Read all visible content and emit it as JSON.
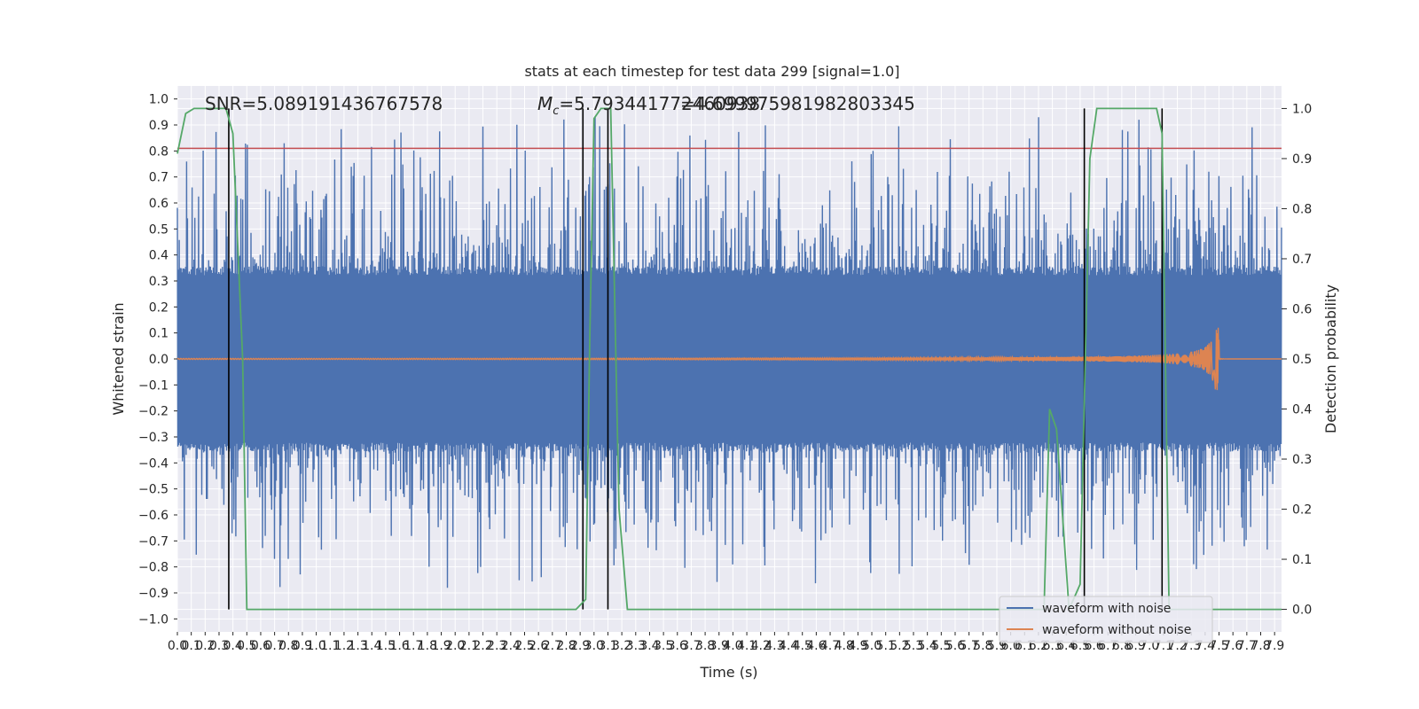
{
  "chart_data": {
    "type": "line",
    "title": "stats at each timestep for test data 299 [signal=1.0]",
    "xlabel": "Time (s)",
    "ylabel": "Whitened strain",
    "y2label": "Detection probability",
    "xlim": [
      0.0,
      7.95
    ],
    "ylim": [
      -1.05,
      1.05
    ],
    "y2lim": [
      -0.045,
      1.045
    ],
    "grid": true,
    "legend_position": "lower-right",
    "x_ticks": [
      "0.0",
      "0.1",
      "0.2",
      "0.3",
      "0.4",
      "0.5",
      "0.6",
      "0.7",
      "0.8",
      "0.9",
      "1.0",
      "1.1",
      "1.2",
      "1.3",
      "1.4",
      "1.5",
      "1.6",
      "1.7",
      "1.8",
      "1.9",
      "2.0",
      "2.1",
      "2.2",
      "2.3",
      "2.4",
      "2.5",
      "2.6",
      "2.7",
      "2.8",
      "2.9",
      "3.0",
      "3.1",
      "3.2",
      "3.3",
      "3.4",
      "3.5",
      "3.6",
      "3.7",
      "3.8",
      "3.9",
      "4.0",
      "4.1",
      "4.2",
      "4.3",
      "4.4",
      "4.5",
      "4.6",
      "4.7",
      "4.8",
      "4.9",
      "5.0",
      "5.1",
      "5.2",
      "5.3",
      "5.4",
      "5.5",
      "5.6",
      "5.7",
      "5.8",
      "5.9",
      "6.0",
      "6.1",
      "6.2",
      "6.3",
      "6.4",
      "6.5",
      "6.6",
      "6.7",
      "6.8",
      "6.9",
      "7.0",
      "7.1",
      "7.2",
      "7.3",
      "7.4",
      "7.5",
      "7.6",
      "7.7",
      "7.8",
      "7.9"
    ],
    "y_ticks": [
      "1.0",
      "0.9",
      "0.8",
      "0.7",
      "0.6",
      "0.5",
      "0.4",
      "0.3",
      "0.2",
      "0.1",
      "0.0",
      "−0.1",
      "−0.2",
      "−0.3",
      "−0.4",
      "−0.5",
      "−0.6",
      "−0.7",
      "−0.8",
      "−0.9",
      "−1.0"
    ],
    "y2_ticks": [
      "1.0",
      "0.9",
      "0.8",
      "0.7",
      "0.6",
      "0.5",
      "0.4",
      "0.3",
      "0.2",
      "0.1",
      "0.0"
    ],
    "annotations": {
      "snr": "SNR=5.089191436767578",
      "mc_prefix": "M",
      "mc_sub": "c",
      "mc_value": "=5.793441772460938",
      "overlap": "=4.699975981982803345"
    },
    "threshold_y": 0.81,
    "vertical_lines_s": [
      0.37,
      2.92,
      3.1,
      6.53,
      7.09
    ],
    "series": [
      {
        "name": "waveform with noise",
        "color": "#4c72b0",
        "noise_amplitude": 0.35,
        "spike_peak_max": 1.0,
        "spike_peak_min": -0.91
      },
      {
        "name": "waveform without noise",
        "color": "#dd8452",
        "merger_time_s": 7.5,
        "max_amplitude": 0.12
      },
      {
        "name": "",
        "color": "#55a868",
        "axis": "right",
        "points": [
          [
            0.0,
            0.91
          ],
          [
            0.06,
            0.99
          ],
          [
            0.12,
            1.0
          ],
          [
            0.35,
            1.0
          ],
          [
            0.4,
            0.95
          ],
          [
            0.47,
            0.5
          ],
          [
            0.5,
            0.0
          ],
          [
            2.87,
            0.0
          ],
          [
            2.94,
            0.02
          ],
          [
            2.97,
            0.55
          ],
          [
            3.0,
            0.98
          ],
          [
            3.05,
            1.0
          ],
          [
            3.12,
            1.0
          ],
          [
            3.18,
            0.2
          ],
          [
            3.24,
            0.0
          ],
          [
            6.24,
            0.0
          ],
          [
            6.28,
            0.4
          ],
          [
            6.33,
            0.36
          ],
          [
            6.42,
            0.0
          ],
          [
            6.5,
            0.05
          ],
          [
            6.57,
            0.9
          ],
          [
            6.62,
            1.0
          ],
          [
            7.05,
            1.0
          ],
          [
            7.09,
            0.95
          ],
          [
            7.14,
            0.0
          ],
          [
            7.95,
            0.0
          ]
        ]
      }
    ],
    "threshold_color": "#c44e52"
  }
}
